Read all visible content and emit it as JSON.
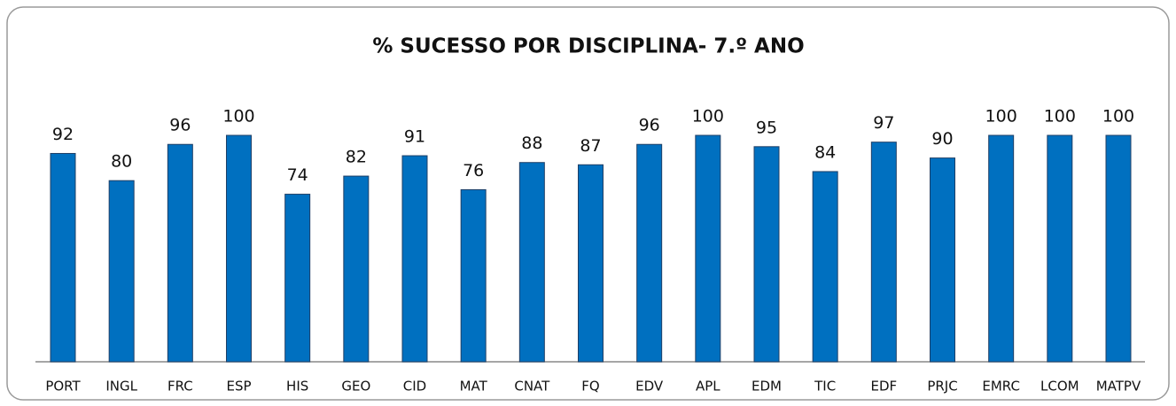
{
  "chart_data": {
    "type": "bar",
    "title": "% SUCESSO  POR DISCIPLINA- 7.º ANO",
    "categories": [
      "PORT",
      "INGL",
      "FRC",
      "ESP",
      "HIS",
      "GEO",
      "CID",
      "MAT",
      "CNAT",
      "FQ",
      "EDV",
      "APL",
      "EDM",
      "TIC",
      "EDF",
      "PRJC",
      "EMRC",
      "LCOM",
      "MATPV"
    ],
    "values": [
      92,
      80,
      96,
      100,
      74,
      82,
      91,
      76,
      88,
      87,
      96,
      100,
      95,
      84,
      97,
      90,
      100,
      100,
      100
    ],
    "color": "#0070c0"
  }
}
